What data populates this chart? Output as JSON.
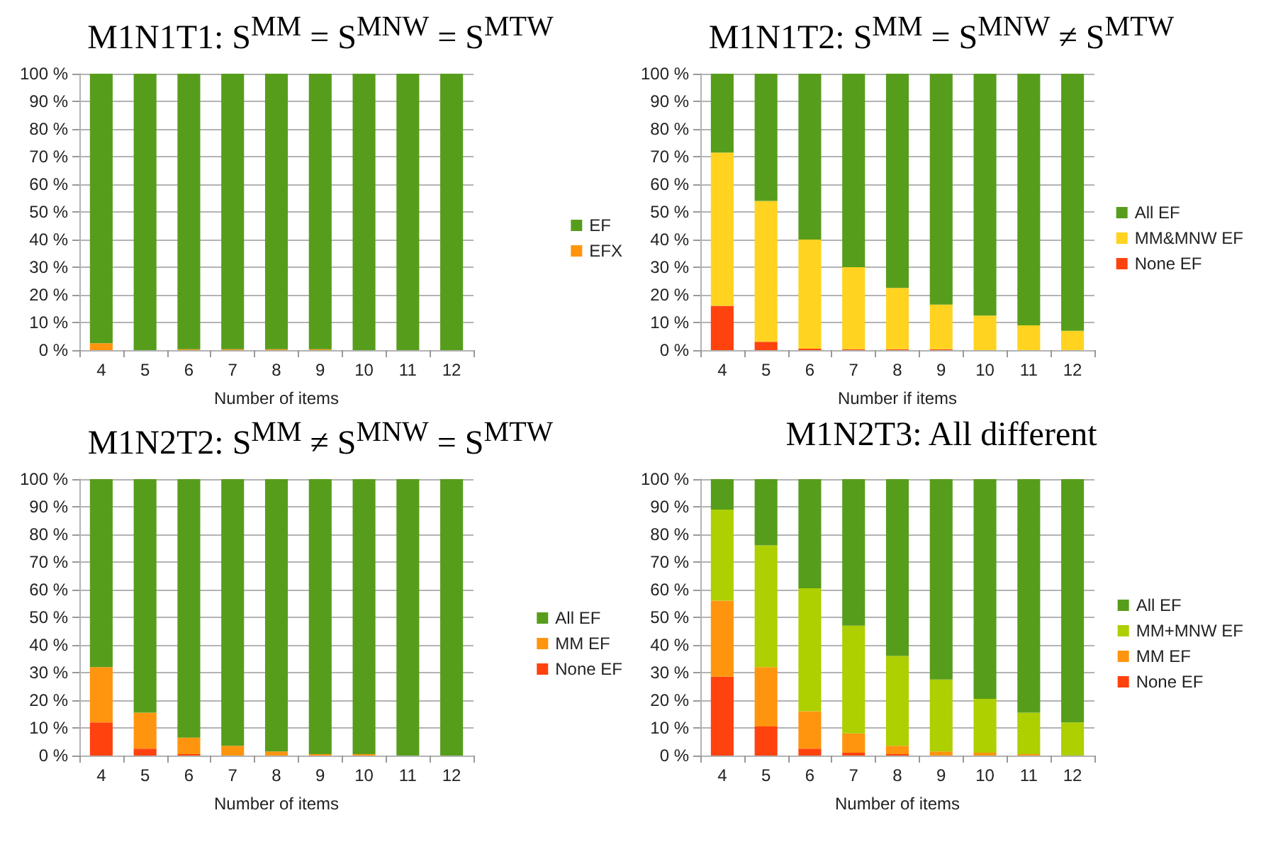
{
  "chart_data": [
    {
      "type": "bar",
      "title": "M1N1T1: S$^{MM}$ = S$^{MNW}$ = S$^{MTW}$",
      "xlabel": "Number of items",
      "categories": [
        "4",
        "5",
        "6",
        "7",
        "8",
        "9",
        "10",
        "11",
        "12"
      ],
      "stacked": true,
      "legend": "right",
      "grid": "y",
      "ylim": [
        0,
        100
      ],
      "yticks": [
        {
          "value": 0,
          "label": "0 %"
        },
        {
          "value": 10,
          "label": "10 %"
        },
        {
          "value": 20,
          "label": "20 %"
        },
        {
          "value": 30,
          "label": "30 %"
        },
        {
          "value": 40,
          "label": "40 %"
        },
        {
          "value": 50,
          "label": "50 %"
        },
        {
          "value": 60,
          "label": "60 %"
        },
        {
          "value": 70,
          "label": "70 %"
        },
        {
          "value": 80,
          "label": "80 %"
        },
        {
          "value": 90,
          "label": "90 %"
        },
        {
          "value": 100,
          "label": "100 %"
        }
      ],
      "series": [
        {
          "name": "EFX",
          "color": "#ff950e",
          "values": [
            2.5,
            0,
            0.3,
            0.3,
            0.3,
            0.3,
            0,
            0,
            0
          ]
        },
        {
          "name": "EF",
          "color": "#579d1c",
          "values": [
            97.5,
            100,
            99.7,
            99.7,
            99.7,
            99.7,
            100,
            100,
            100
          ]
        }
      ]
    },
    {
      "type": "bar",
      "title": "M1N1T2: S$^{MM}$ = S$^{MNW}$ ≠ S$^{MTW}$",
      "xlabel": "Number if items",
      "categories": [
        "4",
        "5",
        "6",
        "7",
        "8",
        "9",
        "10",
        "11",
        "12"
      ],
      "stacked": true,
      "legend": "right",
      "grid": "y",
      "ylim": [
        0,
        100
      ],
      "yticks": [
        {
          "value": 0,
          "label": "0 %"
        },
        {
          "value": 10,
          "label": "10 %"
        },
        {
          "value": 20,
          "label": "20 %"
        },
        {
          "value": 30,
          "label": "30 %"
        },
        {
          "value": 40,
          "label": "40 %"
        },
        {
          "value": 50,
          "label": "50 %"
        },
        {
          "value": 60,
          "label": "60 %"
        },
        {
          "value": 70,
          "label": "70 %"
        },
        {
          "value": 80,
          "label": "80 %"
        },
        {
          "value": 90,
          "label": "90 %"
        },
        {
          "value": 100,
          "label": "100 %"
        }
      ],
      "series": [
        {
          "name": "None EF",
          "color": "#ff420e",
          "values": [
            16,
            3,
            0.5,
            0.3,
            0.3,
            0.3,
            0,
            0,
            0
          ]
        },
        {
          "name": "MM&MNW EF",
          "color": "#ffd320",
          "values": [
            55.5,
            51,
            39.5,
            29.7,
            22.2,
            16.2,
            12.5,
            9,
            7
          ]
        },
        {
          "name": "All EF",
          "color": "#579d1c",
          "values": [
            28.5,
            46,
            60,
            70,
            77.5,
            83.5,
            87.5,
            91,
            93
          ]
        }
      ]
    },
    {
      "type": "bar",
      "title": "M1N2T2: S$^{MM}$ ≠ S$^{MNW}$ = S$^{MTW}$",
      "xlabel": "Number of items",
      "categories": [
        "4",
        "5",
        "6",
        "7",
        "8",
        "9",
        "10",
        "11",
        "12"
      ],
      "stacked": true,
      "legend": "right",
      "grid": "y",
      "ylim": [
        0,
        100
      ],
      "yticks": [
        {
          "value": 0,
          "label": "0 %"
        },
        {
          "value": 10,
          "label": "10 %"
        },
        {
          "value": 20,
          "label": "20 %"
        },
        {
          "value": 30,
          "label": "30 %"
        },
        {
          "value": 40,
          "label": "40 %"
        },
        {
          "value": 50,
          "label": "50 %"
        },
        {
          "value": 60,
          "label": "60 %"
        },
        {
          "value": 70,
          "label": "70 %"
        },
        {
          "value": 80,
          "label": "80 %"
        },
        {
          "value": 90,
          "label": "90 %"
        },
        {
          "value": 100,
          "label": "100 %"
        }
      ],
      "series": [
        {
          "name": "None EF",
          "color": "#ff420e",
          "values": [
            12,
            2.5,
            0.5,
            0,
            0,
            0,
            0,
            0,
            0
          ]
        },
        {
          "name": "MM EF",
          "color": "#ff950e",
          "values": [
            20,
            13,
            6,
            3.5,
            1.5,
            0.5,
            0.5,
            0,
            0
          ]
        },
        {
          "name": "All EF",
          "color": "#579d1c",
          "values": [
            68,
            84.5,
            93.5,
            96.5,
            98.5,
            99.5,
            99.5,
            100,
            100
          ]
        }
      ]
    },
    {
      "type": "bar",
      "title": "M1N2T3: All different",
      "xlabel": "Number of items",
      "categories": [
        "4",
        "5",
        "6",
        "7",
        "8",
        "9",
        "10",
        "11",
        "12"
      ],
      "stacked": true,
      "legend": "right",
      "grid": "y",
      "ylim": [
        0,
        100
      ],
      "yticks": [
        {
          "value": 0,
          "label": "0 %"
        },
        {
          "value": 10,
          "label": "10 %"
        },
        {
          "value": 20,
          "label": "20 %"
        },
        {
          "value": 30,
          "label": "30 %"
        },
        {
          "value": 40,
          "label": "40 %"
        },
        {
          "value": 50,
          "label": "50 %"
        },
        {
          "value": 60,
          "label": "60 %"
        },
        {
          "value": 70,
          "label": "70 %"
        },
        {
          "value": 80,
          "label": "80 %"
        },
        {
          "value": 90,
          "label": "90 %"
        },
        {
          "value": 100,
          "label": "100 %"
        }
      ],
      "series": [
        {
          "name": "None EF",
          "color": "#ff420e",
          "values": [
            28.5,
            10.5,
            2.5,
            1,
            0.5,
            0,
            0,
            0,
            0
          ]
        },
        {
          "name": "MM EF",
          "color": "#ff950e",
          "values": [
            27.5,
            21.5,
            13.5,
            7,
            3,
            1.5,
            1,
            0.5,
            0
          ]
        },
        {
          "name": "MM+MNW EF",
          "color": "#aecf00",
          "values": [
            33,
            44,
            44.5,
            39,
            32.5,
            26,
            19.5,
            15,
            12
          ]
        },
        {
          "name": "All EF",
          "color": "#579d1c",
          "values": [
            11,
            24,
            39.5,
            53,
            64,
            72.5,
            79.5,
            84.5,
            88
          ]
        }
      ]
    }
  ]
}
